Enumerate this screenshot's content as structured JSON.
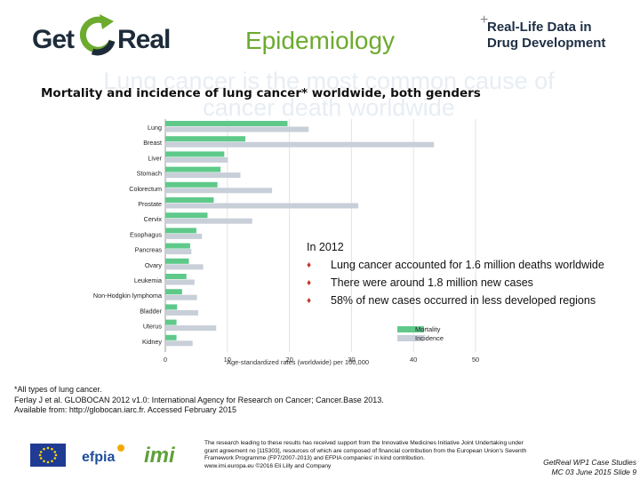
{
  "header": {
    "logo_left_part1": "Get",
    "logo_left_part2": "Real",
    "title": "Epidemiology",
    "logo_right_line1": "Real-Life Data in",
    "logo_right_line2": "Drug Development",
    "logo_right_plus": "+",
    "ghost_heading": "Lung cancer is the most common cause of cancer death worldwide"
  },
  "chart_data": {
    "type": "bar",
    "title": "Mortality and incidence of lung cancer* worldwide, both genders",
    "xlabel": "Age-standardized rates (worldwide) per 100,000",
    "xlim": [
      0,
      50
    ],
    "xticks": [
      "0",
      "10",
      "20",
      "30",
      "40",
      "50"
    ],
    "orientation": "horizontal",
    "grid": true,
    "legend": "bottom-right",
    "categories": [
      "Lung",
      "Breast",
      "Liver",
      "Stomach",
      "Colorectum",
      "Prostate",
      "Cervix",
      "Esophagus",
      "Pancreas",
      "Ovary",
      "Leukemia",
      "Non-Hodgkin lymphoma",
      "Bladder",
      "Uterus",
      "Kidney"
    ],
    "series": [
      {
        "name": "Mortality",
        "color": "#5fc98a",
        "values": [
          19.7,
          12.9,
          9.5,
          8.9,
          8.4,
          7.8,
          6.8,
          5.0,
          4.0,
          3.8,
          3.4,
          2.7,
          1.9,
          1.8,
          1.8
        ]
      },
      {
        "name": "Incidence",
        "color": "#c8cfd8",
        "values": [
          23.1,
          43.3,
          10.1,
          12.1,
          17.2,
          31.1,
          14.0,
          5.9,
          4.2,
          6.1,
          4.7,
          5.1,
          5.3,
          8.2,
          4.4
        ]
      }
    ]
  },
  "info": {
    "heading": "In 2012",
    "items": [
      "Lung cancer accounted for 1.6 million deaths worldwide",
      "There were around 1.8 million new cases",
      "58% of new cases occurred in less developed regions"
    ]
  },
  "footnote": {
    "line1": "*All types of lung cancer.",
    "line2": "Ferlay J et al. GLOBOCAN 2012 v1.0: International Agency for Research on Cancer; Cancer.Base 2013.",
    "line3": "Available from: http://globocan.iarc.fr. Accessed February 2015"
  },
  "footer": {
    "efpia": "efpia",
    "imi": "imi",
    "funding": "The research leading to these results has received support from the Innovative Medicines Initiative Joint Undertaking under grant agreement no [115303], resources of which are composed of financial contribution from the European Union's Seventh Framework Programme (FP7/2007-2013) and EFPIA companies' in kind contribution.",
    "copyright": "www.imi.europa.eu ©2016 Eli Lilly and Company",
    "case_line1": "GetReal WP1 Case Studies",
    "case_line2": "MC 03 June 2015   Slide 9"
  },
  "colors": {
    "title_green": "#6cab2e",
    "logo_navy": "#1d2b3a",
    "bullet_red": "#c0392b"
  }
}
